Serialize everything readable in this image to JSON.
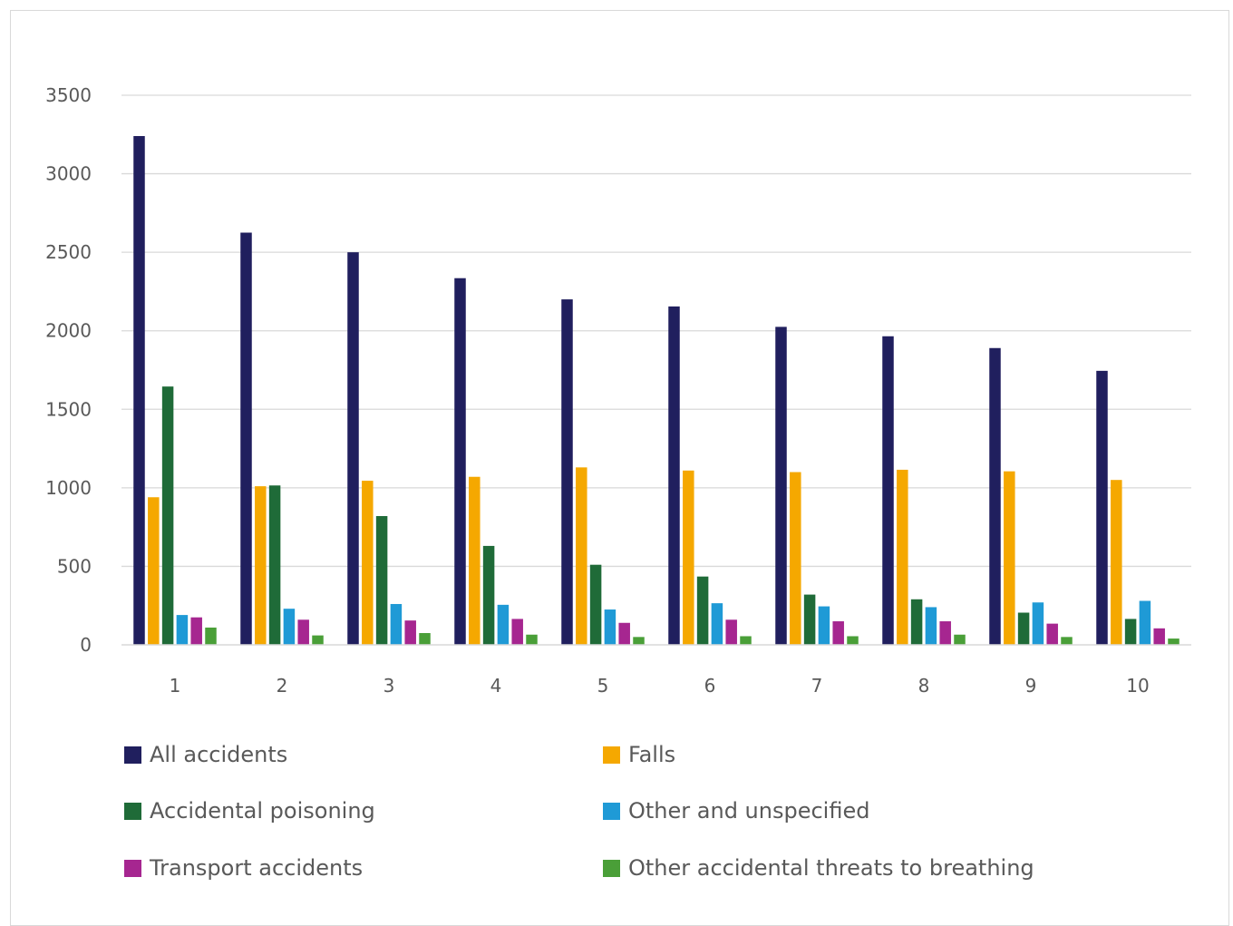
{
  "chart_data": {
    "type": "bar",
    "title": "",
    "xlabel": "",
    "ylabel": "",
    "categories": [
      "1",
      "2",
      "3",
      "4",
      "5",
      "6",
      "7",
      "8",
      "9",
      "10"
    ],
    "ylim": [
      0,
      3500
    ],
    "yticks": [
      "0",
      "500",
      "1000",
      "1500",
      "2000",
      "2500",
      "3000",
      "3500"
    ],
    "grid": true,
    "legend_position": "bottom",
    "series": [
      {
        "name": "All accidents",
        "color": "#201f5e",
        "values": [
          3240,
          2625,
          2500,
          2335,
          2200,
          2155,
          2025,
          1965,
          1890,
          1745
        ]
      },
      {
        "name": "Falls",
        "color": "#f5a800",
        "values": [
          940,
          1010,
          1045,
          1070,
          1130,
          1110,
          1100,
          1115,
          1105,
          1050
        ]
      },
      {
        "name": "Accidental poisoning",
        "color": "#1f6b38",
        "values": [
          1645,
          1015,
          820,
          630,
          510,
          435,
          320,
          290,
          205,
          165
        ]
      },
      {
        "name": "Other and unspecified",
        "color": "#1f9ad6",
        "values": [
          190,
          230,
          260,
          255,
          225,
          265,
          245,
          240,
          270,
          280
        ]
      },
      {
        "name": "Transport accidents",
        "color": "#a62690",
        "values": [
          175,
          160,
          155,
          165,
          140,
          160,
          150,
          150,
          135,
          105
        ]
      },
      {
        "name": "Other accidental threats to breathing",
        "color": "#4a9f38",
        "values": [
          110,
          60,
          75,
          65,
          50,
          55,
          55,
          65,
          50,
          40
        ]
      }
    ]
  }
}
